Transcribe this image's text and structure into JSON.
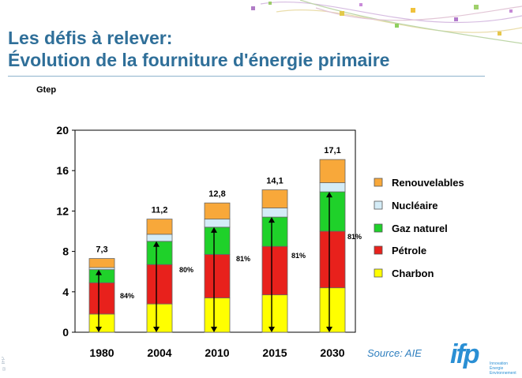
{
  "header": {
    "title_line1": "Les défis à relever:",
    "title_line2": "Évolution de la fourniture d'énergie primaire"
  },
  "footer": {
    "source": "Source: AIE",
    "logo_text": "ifp",
    "logo_tagline": [
      "Innovation",
      "Énergie",
      "Environnement"
    ],
    "copyright": "© IFP"
  },
  "colors": {
    "title": "#2f6f99",
    "charbon": "#ffff00",
    "petrole": "#e8211c",
    "gaz": "#1fd12a",
    "nucleaire": "#d4ecf7",
    "renouvelables": "#f8a83a"
  },
  "chart_data": {
    "type": "bar",
    "stacked": true,
    "unit_label": "Gtep",
    "categories": [
      "1980",
      "2004",
      "2010",
      "2015",
      "2030"
    ],
    "series": [
      {
        "name": "Charbon",
        "values": [
          1.8,
          2.8,
          3.4,
          3.7,
          4.4
        ]
      },
      {
        "name": "Pétrole",
        "values": [
          3.1,
          3.9,
          4.3,
          4.8,
          5.6
        ]
      },
      {
        "name": "Gaz naturel",
        "values": [
          1.3,
          2.3,
          2.7,
          2.9,
          3.9
        ]
      },
      {
        "name": "Nucléaire",
        "values": [
          0.2,
          0.7,
          0.8,
          0.9,
          0.9
        ]
      },
      {
        "name": "Renouvelables",
        "values": [
          0.9,
          1.5,
          1.6,
          1.8,
          2.3
        ]
      }
    ],
    "totals": [
      "7,3",
      "11,2",
      "12,8",
      "14,1",
      "17,1"
    ],
    "fossil_share_labels": [
      "84%",
      "80%",
      "81%",
      "81%",
      "81%"
    ],
    "ylim": [
      0,
      20
    ],
    "yticks": [
      "0",
      "4",
      "8",
      "12",
      "16",
      "20"
    ],
    "legend_order": [
      "Renouvelables",
      "Nucléaire",
      "Gaz naturel",
      "Pétrole",
      "Charbon"
    ],
    "legend_position": "right",
    "grid": false
  }
}
